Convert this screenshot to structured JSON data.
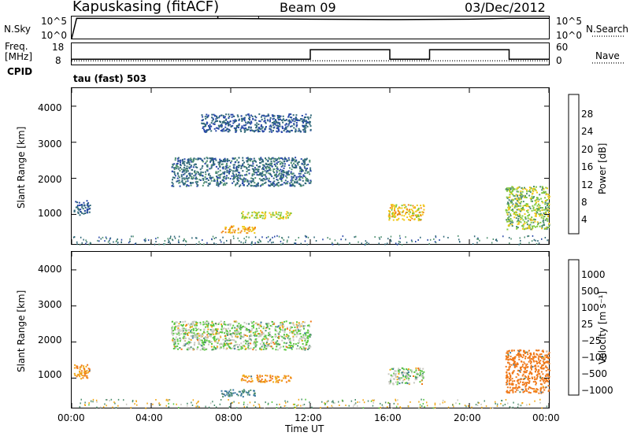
{
  "header": {
    "station": "Kapuskasing (fitACF)",
    "beam": "Beam 09",
    "date": "03/Dec/2012"
  },
  "strip_labels": {
    "nsky": "N.Sky",
    "nsearch": "N.Search",
    "freq_line1": "Freq.",
    "freq_line2": "[MHz]",
    "nave": "Nave",
    "cpid": "CPID",
    "cpid_value": "tau (fast) 503",
    "nsky_ticks": [
      "10^5",
      "10^0"
    ],
    "nsearch_ticks": [
      "10^5",
      "10^0"
    ],
    "freq_ticks": [
      "18",
      "8"
    ],
    "nave_ticks": [
      "60",
      "0"
    ]
  },
  "x_axis": {
    "label": "Time UT",
    "ticks": [
      "00:00",
      "04:00",
      "08:00",
      "12:00",
      "16:00",
      "20:00",
      "00:00"
    ]
  },
  "power_panel": {
    "ylabel": "Slant Range [km]",
    "yticks": [
      "4000",
      "3000",
      "2000",
      "1000"
    ],
    "cbar_label": "Power [dB]",
    "cbar_ticks": [
      "28",
      "24",
      "20",
      "16",
      "12",
      "8",
      "4"
    ],
    "cbar_colors": [
      "#e8101a",
      "#f04818",
      "#f08818",
      "#f0c818",
      "#7fc83a",
      "#4f9070",
      "#2f6878",
      "#2848a8",
      "#1818e8"
    ]
  },
  "velocity_panel": {
    "ylabel": "Slant Range [km]",
    "yticks": [
      "4000",
      "3000",
      "2000",
      "1000"
    ],
    "cbar_label": "Velocity [m s⁻¹]",
    "cbar_ticks": [
      "1000",
      "500",
      "100",
      "25",
      "−25",
      "−100",
      "−500",
      "−1000"
    ],
    "cbar_colors": [
      "#2840b8",
      "#3a78a0",
      "#4f9070",
      "#58c840",
      "#c8c8c0",
      "#f0a818",
      "#f07818",
      "#f04818",
      "#e81818"
    ]
  },
  "chart_data": [
    {
      "type": "line",
      "title": "Kapuskasing (fitACF) Beam 09 03/Dec/2012",
      "series": [
        {
          "name": "N.Sky",
          "x": [
            "00:00",
            "00:15",
            "04:00",
            "08:00",
            "12:00",
            "16:00",
            "20:00",
            "22:00",
            "24:00"
          ],
          "values_log10": [
            0.0,
            4.6,
            4.5,
            4.55,
            4.4,
            4.3,
            4.4,
            4.6,
            4.6
          ]
        },
        {
          "name": "N.Search",
          "x": [
            "00:00",
            "24:00"
          ],
          "values_log10": [
            4.5,
            4.5
          ]
        }
      ],
      "ylim_log10": [
        0,
        5
      ]
    },
    {
      "type": "line",
      "series": [
        {
          "name": "Freq.",
          "unit": "MHz",
          "x": [
            "00:00",
            "12:00",
            "12:00",
            "16:00",
            "16:00",
            "18:00",
            "18:00",
            "22:00",
            "22:00",
            "24:00"
          ],
          "values": [
            10.5,
            10.5,
            15,
            15,
            10.5,
            10.5,
            15,
            15,
            10.5,
            10.5
          ]
        },
        {
          "name": "Nave",
          "x": [
            "00:00",
            "24:00"
          ],
          "values": [
            8,
            8
          ]
        }
      ],
      "ylim": [
        8,
        18
      ],
      "y2lim": [
        0,
        60
      ]
    },
    {
      "type": "heatmap",
      "title": "Power [dB]",
      "xlabel": "Time UT",
      "ylabel": "Slant Range [km]",
      "xlim_hours": [
        0,
        24
      ],
      "ylim": [
        180,
        4500
      ],
      "zlim": [
        0,
        32
      ],
      "echo_regions": [
        {
          "t": [
            0.1,
            0.9
          ],
          "r": [
            1000,
            1400
          ],
          "value": 6
        },
        {
          "t": [
            7.5,
            9.2
          ],
          "r": [
            500,
            700
          ],
          "value": 22
        },
        {
          "t": [
            8.5,
            11
          ],
          "r": [
            900,
            1100
          ],
          "value": 18
        },
        {
          "t": [
            5.0,
            12.0
          ],
          "r": [
            1800,
            2600
          ],
          "value": 8
        },
        {
          "t": [
            6.5,
            12.0
          ],
          "r": [
            3300,
            3800
          ],
          "value": 6
        },
        {
          "t": [
            15.9,
            17.7
          ],
          "r": [
            850,
            1300
          ],
          "value": 20
        },
        {
          "t": [
            21.8,
            24
          ],
          "r": [
            600,
            1800
          ],
          "value": 16
        }
      ]
    },
    {
      "type": "heatmap",
      "title": "Velocity [m s⁻¹]",
      "xlabel": "Time UT",
      "ylabel": "Slant Range [km]",
      "xlim_hours": [
        0,
        24
      ],
      "ylim": [
        180,
        4500
      ],
      "zlim": [
        -1000,
        1000
      ],
      "echo_regions": [
        {
          "t": [
            0.1,
            0.9
          ],
          "r": [
            1000,
            1400
          ],
          "value": -100
        },
        {
          "t": [
            7.5,
            9.2
          ],
          "r": [
            500,
            700
          ],
          "value": 100
        },
        {
          "t": [
            8.5,
            11
          ],
          "r": [
            900,
            1100
          ],
          "value": -100
        },
        {
          "t": [
            5.0,
            12.0
          ],
          "r": [
            1800,
            2600
          ],
          "value": 0
        },
        {
          "t": [
            15.9,
            17.7
          ],
          "r": [
            850,
            1300
          ],
          "value": 0
        },
        {
          "t": [
            21.8,
            24
          ],
          "r": [
            600,
            1800
          ],
          "value": -200
        }
      ]
    }
  ]
}
